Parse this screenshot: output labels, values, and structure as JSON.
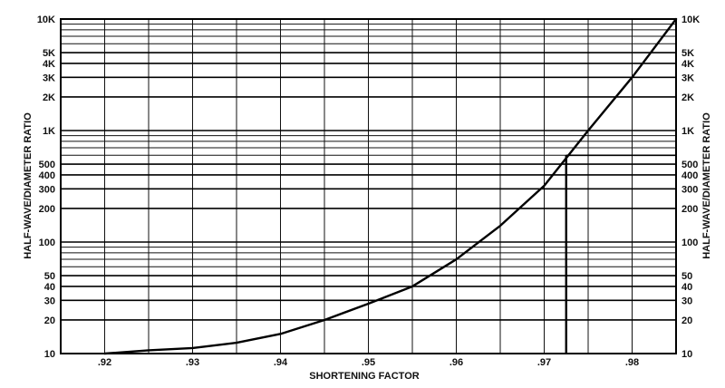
{
  "chart_data": {
    "type": "line",
    "title": "",
    "xlabel": "SHORTENING FACTOR",
    "ylabel": "HALF-WAVE/DIAMETER RATIO",
    "ylabel_right": "HALF-WAVE/DIAMETER RATIO",
    "y_scale": "log",
    "xlim": [
      0.915,
      0.985
    ],
    "ylim": [
      10,
      10000
    ],
    "x_ticks": [
      0.92,
      0.93,
      0.94,
      0.95,
      0.96,
      0.97,
      0.98
    ],
    "x_tick_labels": [
      ".92",
      ".93",
      ".94",
      ".95",
      ".96",
      ".97",
      ".98"
    ],
    "y_ticks": [
      10,
      20,
      30,
      40,
      50,
      100,
      200,
      300,
      400,
      500,
      1000,
      2000,
      3000,
      4000,
      5000,
      10000
    ],
    "y_tick_labels": [
      "10",
      "20",
      "30",
      "40",
      "50",
      "100",
      "200",
      "300",
      "400",
      "500",
      "1K",
      "2K",
      "3K",
      "4K",
      "5K",
      "10K"
    ],
    "grid": true,
    "legend": "none",
    "line_color": "#000000",
    "series": [
      {
        "x": [
          0.92,
          0.925,
          0.93,
          0.935,
          0.94,
          0.945,
          0.95,
          0.955,
          0.96,
          0.965,
          0.97,
          0.975,
          0.98,
          0.985
        ],
        "values": [
          10,
          10.7,
          11.2,
          12.5,
          15,
          20,
          28,
          40,
          70,
          140,
          320,
          1000,
          3000,
          10000
        ]
      }
    ],
    "annotation": {
      "x": 0.9725,
      "y": 600
    }
  }
}
